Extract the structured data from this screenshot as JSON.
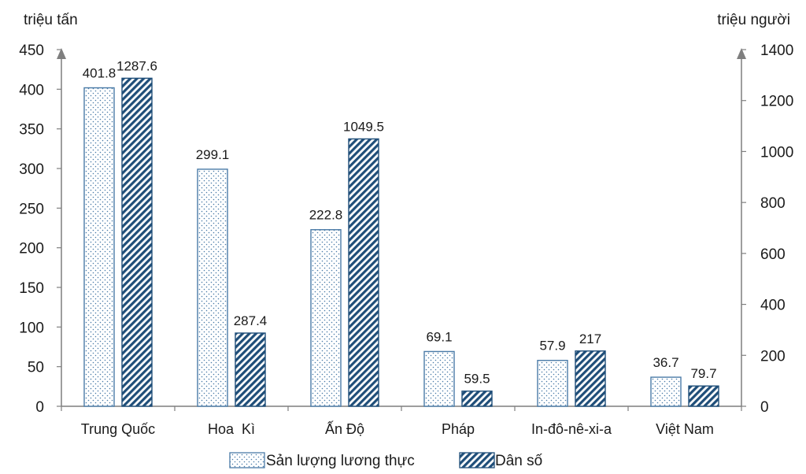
{
  "chart_data": {
    "type": "bar",
    "categories": [
      "Trung Quốc",
      "Hoa  Kì",
      "Ấn Độ",
      "Pháp",
      "In-đô-nê-xi-a",
      "Việt Nam"
    ],
    "series": [
      {
        "name": "Sản lượng lương thực",
        "axis": "left",
        "pattern": "dots",
        "values": [
          401.8,
          299.1,
          222.8,
          69.1,
          57.9,
          36.7
        ],
        "labels": [
          "401.8",
          "299.1",
          "222.8",
          "69.1",
          "57.9",
          "36.7"
        ]
      },
      {
        "name": "Dân số",
        "axis": "right",
        "pattern": "diagonal-stripes",
        "values": [
          1287.6,
          287.4,
          1049.5,
          59.5,
          217,
          79.7
        ],
        "labels": [
          "1287.6",
          "287.4",
          "1049.5",
          "59.5",
          "217",
          "79.7"
        ]
      }
    ],
    "y_left": {
      "unit_label": "triệu tấn",
      "ylim": [
        0,
        450
      ],
      "ticks": [
        0,
        50,
        100,
        150,
        200,
        250,
        300,
        350,
        400,
        450
      ]
    },
    "y_right": {
      "unit_label": "triệu người",
      "ylim": [
        0,
        1400
      ],
      "ticks": [
        0,
        200,
        400,
        600,
        800,
        1000,
        1200,
        1400
      ]
    },
    "legend_position": "bottom-center",
    "grid": false,
    "colors": {
      "bar_outline": "#4a7ba7",
      "stripe": "#1f4e79",
      "dot": "#4a7ba7",
      "axis": "#7f7f7f",
      "text": "#1a1a1a"
    }
  }
}
